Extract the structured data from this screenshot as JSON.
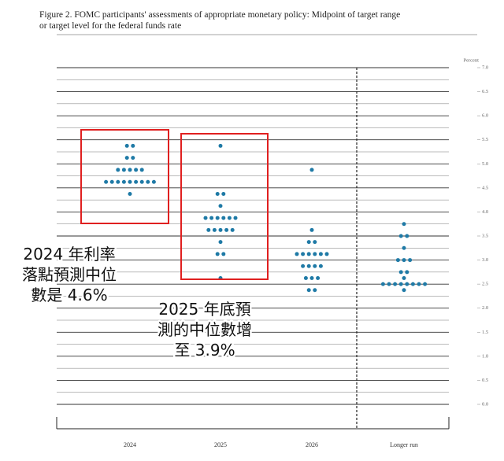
{
  "chart_data": {
    "type": "dot",
    "title": [
      "Figure 2.  FOMC participants' assessments of appropriate monetary policy: Midpoint of target range",
      "or target level for the federal funds rate"
    ],
    "y_axis_label": "Percent",
    "categories": [
      "2024",
      "2025",
      "2026",
      "Longer run"
    ],
    "values": [
      [
        5.375,
        5.375,
        5.125,
        5.125,
        4.875,
        4.875,
        4.875,
        4.875,
        4.875,
        4.625,
        4.625,
        4.625,
        4.625,
        4.625,
        4.625,
        4.625,
        4.625,
        4.625,
        4.375
      ],
      [
        5.375,
        4.375,
        4.375,
        4.125,
        3.875,
        3.875,
        3.875,
        3.875,
        3.875,
        3.875,
        3.625,
        3.625,
        3.625,
        3.625,
        3.625,
        3.375,
        3.125,
        3.125,
        2.625
      ],
      [
        4.875,
        3.625,
        3.375,
        3.375,
        3.125,
        3.125,
        3.125,
        3.125,
        3.125,
        3.125,
        2.875,
        2.875,
        2.875,
        2.875,
        2.625,
        2.625,
        2.625,
        2.375,
        2.375
      ],
      [
        3.75,
        3.5,
        3.5,
        3.25,
        3.0,
        3.0,
        3.0,
        2.75,
        2.75,
        2.625,
        2.5,
        2.5,
        2.5,
        2.5,
        2.5,
        2.5,
        2.5,
        2.5,
        2.375
      ]
    ],
    "color": "#1f7aa6",
    "ylim": [
      0,
      7
    ],
    "yticks": [
      {
        "value": 0,
        "label": "0.0"
      },
      {
        "value": 0.5,
        "label": "0.5"
      },
      {
        "value": 1,
        "label": "1.0"
      },
      {
        "value": 1.5,
        "label": "1.5"
      },
      {
        "value": 2,
        "label": "2.0"
      },
      {
        "value": 2.5,
        "label": "2.5"
      },
      {
        "value": 3,
        "label": "3.0"
      },
      {
        "value": 3.5,
        "label": "3.5"
      },
      {
        "value": 4,
        "label": "4.0"
      },
      {
        "value": 4.5,
        "label": "4.5"
      },
      {
        "value": 5,
        "label": "5.0"
      },
      {
        "value": 5.5,
        "label": "5.5"
      },
      {
        "value": 6,
        "label": "6.0"
      },
      {
        "value": 6.5,
        "label": "6.5"
      },
      {
        "value": 7,
        "label": "7.0"
      }
    ],
    "grid": true,
    "annotations": [
      {
        "lines": [
          "2024 年利率",
          "落點預測中位",
          "數是 4.6%"
        ]
      },
      {
        "lines": [
          "2025 年底預",
          "測的中位數增",
          "至 3.9%"
        ]
      }
    ]
  }
}
